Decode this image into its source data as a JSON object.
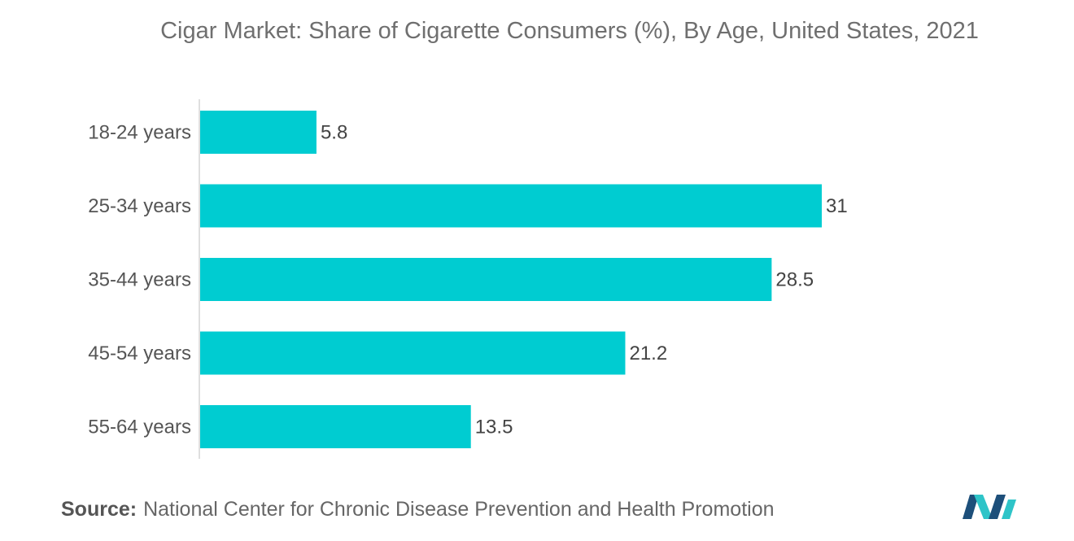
{
  "title": "Cigar Market: Share of Cigarette Consumers (%), By Age, United States, 2021",
  "source": {
    "label": "Source:",
    "text": "National Center for Chronic Disease Prevention and Health Promotion"
  },
  "logo_icon": "mordor-intelligence-logo-icon",
  "colors": {
    "bar": "#00CCD1",
    "axis": "#bfbfbf",
    "logo_dark": "#1d4f7a",
    "logo_light": "#2ec4c8"
  },
  "chart_data": {
    "type": "bar",
    "orientation": "horizontal",
    "categories": [
      "18-24 years",
      "25-34 years",
      "35-44 years",
      "45-54 years",
      "55-64 years"
    ],
    "values": [
      5.8,
      31,
      28.5,
      21.2,
      13.5
    ],
    "value_labels": [
      "5.8",
      "31",
      "28.5",
      "21.2",
      "13.5"
    ],
    "xlim": [
      0,
      31
    ],
    "grid": false,
    "legend": "none"
  }
}
